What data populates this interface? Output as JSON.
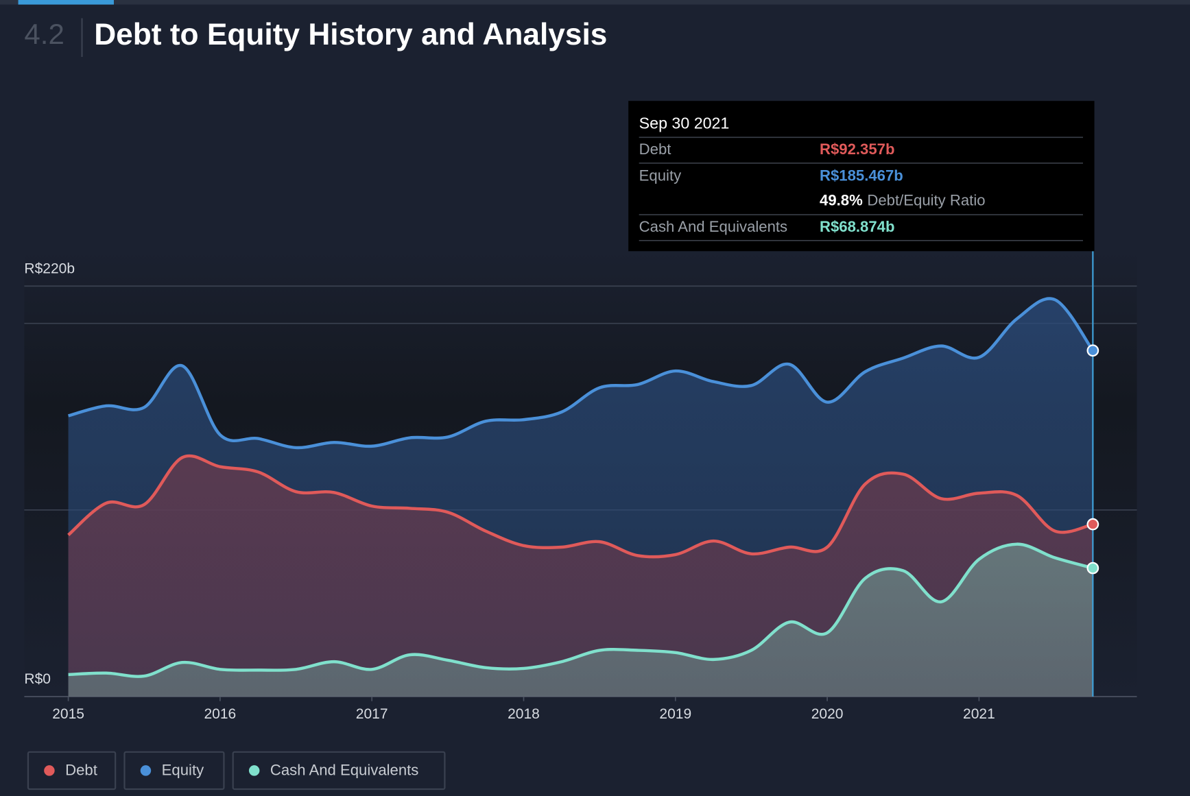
{
  "chart_data": {
    "type": "area",
    "section_number": "4.2",
    "title": "Debt to Equity History and Analysis",
    "x": [
      2015,
      2015.25,
      2015.5,
      2015.75,
      2016,
      2016.25,
      2016.5,
      2016.75,
      2017,
      2017.25,
      2017.5,
      2017.75,
      2018,
      2018.25,
      2018.5,
      2018.75,
      2019,
      2019.25,
      2019.5,
      2019.75,
      2020,
      2020.25,
      2020.5,
      2020.75,
      2021,
      2021.25,
      2021.5,
      2021.75
    ],
    "xlim": [
      2014.71,
      2022.04
    ],
    "xticks": [
      2015,
      2016,
      2017,
      2018,
      2019,
      2020,
      2021
    ],
    "ylim": [
      0,
      220
    ],
    "yticks": [
      {
        "value": 0,
        "label": "R$0"
      },
      {
        "value": 100,
        "label": null
      },
      {
        "value": 200,
        "label": null
      },
      {
        "value": 220,
        "label": "R$220b"
      }
    ],
    "series": [
      {
        "name": "Debt",
        "color": "#e05a5a",
        "values": [
          86.6,
          103.7,
          102.9,
          128.1,
          123.2,
          120.4,
          109.8,
          109.4,
          102.1,
          100.9,
          98.8,
          88.7,
          80.9,
          80.1,
          83.0,
          75.6,
          76.1,
          83.4,
          76.5,
          80.1,
          80.1,
          113.9,
          119.2,
          106.1,
          109.0,
          107.8,
          88.7,
          92.357
        ],
        "value_labels": [
          null,
          null,
          null,
          null,
          null,
          null,
          null,
          null,
          null,
          null,
          null,
          null,
          null,
          null,
          null,
          null,
          null,
          null,
          null,
          null,
          null,
          null,
          null,
          null,
          null,
          null,
          null,
          "R$92.357b"
        ]
      },
      {
        "name": "Equity",
        "color": "#4a90d9",
        "values": [
          150.5,
          155.8,
          155.0,
          177.3,
          140.3,
          138.3,
          133.4,
          136.2,
          134.2,
          138.7,
          139.1,
          147.6,
          148.4,
          152.5,
          165.5,
          167.2,
          174.5,
          168.8,
          166.7,
          178.1,
          157.8,
          174.1,
          181.4,
          187.9,
          181.8,
          202.5,
          212.7,
          185.467
        ],
        "value_labels": [
          null,
          null,
          null,
          null,
          null,
          null,
          null,
          null,
          null,
          null,
          null,
          null,
          null,
          null,
          null,
          null,
          null,
          null,
          null,
          null,
          null,
          null,
          null,
          null,
          null,
          null,
          null,
          "R$185.467b"
        ]
      },
      {
        "name": "Cash And Equivalents",
        "color": "#80e0cc",
        "values": [
          11.8,
          12.6,
          11.0,
          18.3,
          14.6,
          14.2,
          14.6,
          18.7,
          14.6,
          22.4,
          19.5,
          15.5,
          15.1,
          18.7,
          24.8,
          24.8,
          23.6,
          19.9,
          24.8,
          39.9,
          34.2,
          63.4,
          67.5,
          50.8,
          73.6,
          81.7,
          74.4,
          68.874
        ],
        "value_labels": [
          null,
          null,
          null,
          null,
          null,
          null,
          null,
          null,
          null,
          null,
          null,
          null,
          null,
          null,
          null,
          null,
          null,
          null,
          null,
          null,
          null,
          null,
          null,
          null,
          null,
          null,
          null,
          "R$68.874b"
        ]
      }
    ],
    "tooltip": {
      "title": "Sep 30 2021",
      "ratio_value": "49.8%",
      "ratio_text": "Debt/Equity Ratio"
    }
  }
}
